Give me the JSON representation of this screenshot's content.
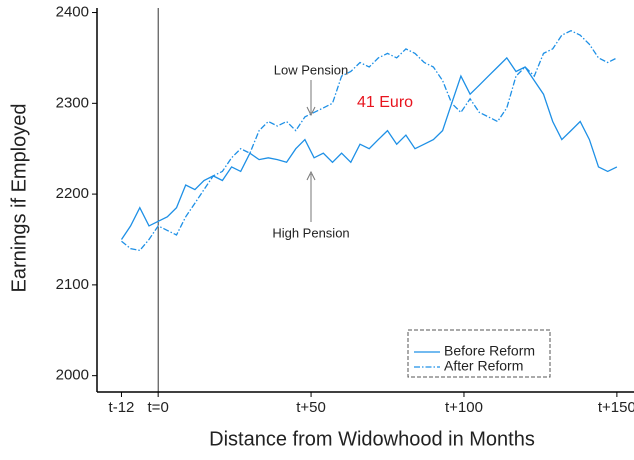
{
  "chart_data": {
    "type": "line",
    "x_label": "Distance from Widowhood in Months",
    "y_label": "Earnings if Employed",
    "x": [
      -12,
      -9,
      -6,
      -3,
      0,
      3,
      6,
      9,
      12,
      15,
      18,
      21,
      24,
      27,
      30,
      33,
      36,
      39,
      42,
      45,
      48,
      51,
      54,
      57,
      60,
      63,
      66,
      69,
      72,
      75,
      78,
      81,
      84,
      87,
      90,
      93,
      96,
      99,
      102,
      105,
      108,
      111,
      114,
      117,
      120,
      123,
      126,
      129,
      132,
      135,
      138,
      141,
      144,
      147,
      150
    ],
    "series": [
      {
        "name": "Before Reform",
        "color": "#1e90e6",
        "style": "solid",
        "values": [
          2150,
          2165,
          2185,
          2165,
          2170,
          2175,
          2185,
          2210,
          2205,
          2215,
          2220,
          2215,
          2230,
          2225,
          2245,
          2238,
          2240,
          2238,
          2235,
          2250,
          2260,
          2240,
          2245,
          2235,
          2245,
          2235,
          2255,
          2250,
          2260,
          2270,
          2255,
          2265,
          2250,
          2255,
          2260,
          2270,
          2300,
          2330,
          2310,
          2320,
          2330,
          2340,
          2350,
          2335,
          2340,
          2325,
          2310,
          2280,
          2260,
          2270,
          2280,
          2260,
          2230,
          2225,
          2230
        ]
      },
      {
        "name": "After Reform",
        "color": "#1e90e6",
        "style": "dashdot",
        "values": [
          2148,
          2140,
          2138,
          2150,
          2165,
          2160,
          2155,
          2175,
          2190,
          2205,
          2220,
          2225,
          2240,
          2250,
          2245,
          2270,
          2280,
          2275,
          2280,
          2270,
          2285,
          2290,
          2295,
          2300,
          2330,
          2335,
          2345,
          2340,
          2350,
          2355,
          2350,
          2360,
          2355,
          2345,
          2340,
          2325,
          2300,
          2290,
          2305,
          2290,
          2285,
          2280,
          2295,
          2330,
          2340,
          2330,
          2355,
          2360,
          2375,
          2380,
          2375,
          2365,
          2350,
          2345,
          2350
        ]
      }
    ],
    "xlim": [
      -20,
      155.6
    ],
    "ylim": [
      1982,
      2405
    ],
    "xticks": [
      {
        "value": -12,
        "label": "t-12"
      },
      {
        "value": 0,
        "label": "t=0"
      },
      {
        "value": 50,
        "label": "t+50"
      },
      {
        "value": 100,
        "label": "t+100"
      },
      {
        "value": 150,
        "label": "t+150"
      }
    ],
    "yticks": [
      2000,
      2100,
      2200,
      2300,
      2400
    ],
    "vline": 0,
    "annotations": [
      "Low Pension",
      "High Pension",
      "41 Euro"
    ],
    "annotation_color": "#e8141e",
    "legend": "lower right"
  }
}
